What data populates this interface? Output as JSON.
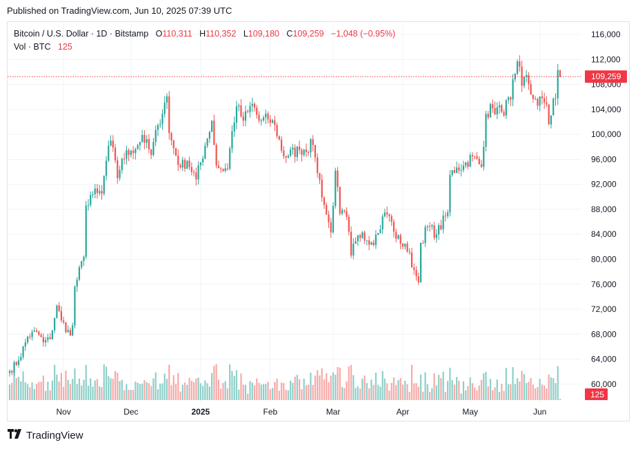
{
  "published": "Published on TradingView.com, Jun 10, 2025 07:39 UTC",
  "header": {
    "symbol": "Bitcoin / U.S. Dollar · 1D · Bitstamp",
    "o_label": "O",
    "o_value": "110,311",
    "h_label": "H",
    "h_value": "110,352",
    "l_label": "L",
    "l_value": "109,180",
    "c_label": "C",
    "c_value": "109,259",
    "change": "−1,048 (−0.95%)",
    "vol_label": "Vol · BTC",
    "vol_value": "125"
  },
  "footer": {
    "brand": "TradingView",
    "logo_icon": "tradingview-logo-icon"
  },
  "colors": {
    "up": "#26a69a",
    "down": "#ef5350",
    "up_vol": "#8ecfc8",
    "down_vol": "#f7a9a7",
    "badge": "#f23645",
    "grid": "#f0f3fa",
    "text": "#131722"
  },
  "chart_data": {
    "type": "candlestick",
    "symbol": "BTCUSD",
    "timeframe": "1D",
    "exchange": "Bitstamp",
    "ylim": [
      57000,
      118000
    ],
    "y_ticks": [
      "116,000",
      "112,000",
      "108,000",
      "104,000",
      "100,000",
      "96,000",
      "92,000",
      "88,000",
      "84,000",
      "80,000",
      "76,000",
      "72,000",
      "68,000",
      "64,000",
      "60,000"
    ],
    "x_ticks": [
      {
        "label": "Nov",
        "date": "2024-11-01",
        "bold": false
      },
      {
        "label": "Dec",
        "date": "2024-12-01",
        "bold": false
      },
      {
        "label": "2025",
        "date": "2025-01-01",
        "bold": true
      },
      {
        "label": "Feb",
        "date": "2025-02-01",
        "bold": false
      },
      {
        "label": "Mar",
        "date": "2025-03-01",
        "bold": false
      },
      {
        "label": "Apr",
        "date": "2025-04-01",
        "bold": false
      },
      {
        "label": "May",
        "date": "2025-05-01",
        "bold": false
      },
      {
        "label": "Jun",
        "date": "2025-06-01",
        "bold": false
      }
    ],
    "last_price": 109259,
    "last_price_label": "109,259",
    "last_volume_label": "125",
    "start_date": "2024-10-08",
    "end_date": "2025-06-10",
    "close_anchors": [
      [
        "2024-10-08",
        62100
      ],
      [
        "2024-10-12",
        63800
      ],
      [
        "2024-10-16",
        67600
      ],
      [
        "2024-10-20",
        68400
      ],
      [
        "2024-10-23",
        66700
      ],
      [
        "2024-10-26",
        67200
      ],
      [
        "2024-10-29",
        72600
      ],
      [
        "2024-10-31",
        70200
      ],
      [
        "2024-11-04",
        67800
      ],
      [
        "2024-11-05",
        69400
      ],
      [
        "2024-11-06",
        75600
      ],
      [
        "2024-11-10",
        80400
      ],
      [
        "2024-11-11",
        88600
      ],
      [
        "2024-11-13",
        90300
      ],
      [
        "2024-11-16",
        90600
      ],
      [
        "2024-11-18",
        90500
      ],
      [
        "2024-11-21",
        98200
      ],
      [
        "2024-11-22",
        99000
      ],
      [
        "2024-11-25",
        93000
      ],
      [
        "2024-11-27",
        96100
      ],
      [
        "2024-12-01",
        97400
      ],
      [
        "2024-12-05",
        98800
      ],
      [
        "2024-12-06",
        99900
      ],
      [
        "2024-12-10",
        96700
      ],
      [
        "2024-12-13",
        101500
      ],
      [
        "2024-12-17",
        106100
      ],
      [
        "2024-12-18",
        100200
      ],
      [
        "2024-12-20",
        97800
      ],
      [
        "2024-12-23",
        94700
      ],
      [
        "2024-12-26",
        95800
      ],
      [
        "2024-12-30",
        92800
      ],
      [
        "2025-01-03",
        98200
      ],
      [
        "2025-01-06",
        102200
      ],
      [
        "2025-01-08",
        95000
      ],
      [
        "2025-01-10",
        94500
      ],
      [
        "2025-01-13",
        94500
      ],
      [
        "2025-01-15",
        100500
      ],
      [
        "2025-01-17",
        104500
      ],
      [
        "2025-01-20",
        102200
      ],
      [
        "2025-01-22",
        103600
      ],
      [
        "2025-01-24",
        104900
      ],
      [
        "2025-01-27",
        102200
      ],
      [
        "2025-01-31",
        102400
      ],
      [
        "2025-02-03",
        101500
      ],
      [
        "2025-02-07",
        96500
      ],
      [
        "2025-02-14",
        97500
      ],
      [
        "2025-02-20",
        98300
      ],
      [
        "2025-02-21",
        96300
      ],
      [
        "2025-02-25",
        88700
      ],
      [
        "2025-02-28",
        84300
      ],
      [
        "2025-03-02",
        94200
      ],
      [
        "2025-03-04",
        87300
      ],
      [
        "2025-03-07",
        86800
      ],
      [
        "2025-03-09",
        80600
      ],
      [
        "2025-03-11",
        82900
      ],
      [
        "2025-03-14",
        84300
      ],
      [
        "2025-03-18",
        82700
      ],
      [
        "2025-03-21",
        84200
      ],
      [
        "2025-03-24",
        87500
      ],
      [
        "2025-03-26",
        86900
      ],
      [
        "2025-03-28",
        84400
      ],
      [
        "2025-03-31",
        82500
      ],
      [
        "2025-04-02",
        82500
      ],
      [
        "2025-04-06",
        78300
      ],
      [
        "2025-04-08",
        76300
      ],
      [
        "2025-04-09",
        82600
      ],
      [
        "2025-04-12",
        85300
      ],
      [
        "2025-04-16",
        84000
      ],
      [
        "2025-04-21",
        87500
      ],
      [
        "2025-04-22",
        93500
      ],
      [
        "2025-04-25",
        94700
      ],
      [
        "2025-04-28",
        95000
      ],
      [
        "2025-05-02",
        96500
      ],
      [
        "2025-05-06",
        94800
      ],
      [
        "2025-05-08",
        103300
      ],
      [
        "2025-05-11",
        104200
      ],
      [
        "2025-05-15",
        103600
      ],
      [
        "2025-05-19",
        105600
      ],
      [
        "2025-05-21",
        109700
      ],
      [
        "2025-05-22",
        111700
      ],
      [
        "2025-05-24",
        107800
      ],
      [
        "2025-05-26",
        109500
      ],
      [
        "2025-05-29",
        105700
      ],
      [
        "2025-05-31",
        104600
      ],
      [
        "2025-06-02",
        105800
      ],
      [
        "2025-06-04",
        104800
      ],
      [
        "2025-06-05",
        101600
      ],
      [
        "2025-06-07",
        105700
      ],
      [
        "2025-06-08",
        105800
      ],
      [
        "2025-06-09",
        110300
      ],
      [
        "2025-06-10",
        109259
      ]
    ],
    "last_candle": {
      "date": "2025-06-10",
      "open": 110311,
      "high": 110352,
      "low": 109180,
      "close": 109259,
      "volume": 125
    }
  }
}
